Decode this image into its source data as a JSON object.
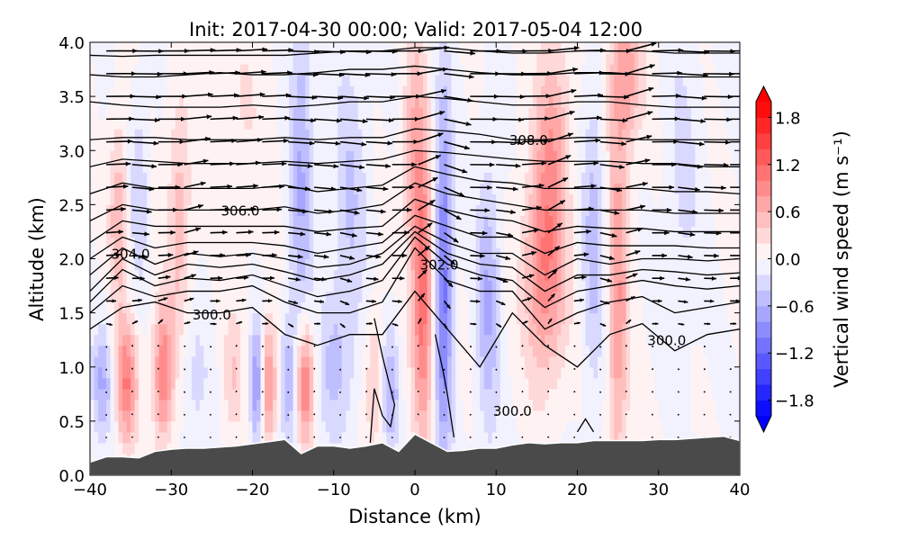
{
  "chart_data": {
    "type": "heatmap",
    "title": "Init: 2017-04-30 00:00; Valid: 2017-05-04 12:00",
    "xlabel": "Distance (km)",
    "ylabel": "Altitude (km)",
    "xlim": [
      -40,
      40
    ],
    "ylim": [
      0,
      4
    ],
    "xticks": [
      "−40",
      "−30",
      "−20",
      "−10",
      "0",
      "10",
      "20",
      "30",
      "40"
    ],
    "xtick_values": [
      -40,
      -30,
      -20,
      -10,
      0,
      10,
      20,
      30,
      40
    ],
    "yticks": [
      "0.0",
      "0.5",
      "1.0",
      "1.5",
      "2.0",
      "2.5",
      "3.0",
      "3.5",
      "4.0"
    ],
    "ytick_values": [
      0,
      0.5,
      1,
      1.5,
      2,
      2.5,
      3,
      3.5,
      4
    ],
    "colorbar": {
      "label": "Vertical wind speed (m s⁻¹)",
      "range": [
        -2.0,
        2.0
      ],
      "step": 0.2,
      "extend": "both",
      "ticks": [
        "−1.8",
        "−1.2",
        "−0.6",
        "0.0",
        "0.6",
        "1.2",
        "1.8"
      ],
      "tick_values": [
        -1.8,
        -1.2,
        -0.6,
        0,
        0.6,
        1.2,
        1.8
      ],
      "colormap": "bwr",
      "low_color": "#0000ff",
      "mid_color": "#ffffff",
      "high_color": "#ff0000"
    },
    "w_features": [
      {
        "x": -38.5,
        "z": 0.85,
        "sx": 0.9,
        "sz": 0.35,
        "w": -0.6
      },
      {
        "x": -35.5,
        "z": 0.85,
        "sx": 0.9,
        "sz": 0.4,
        "w": 1.0
      },
      {
        "x": -31,
        "z": 0.95,
        "sx": 0.9,
        "sz": 0.45,
        "w": 1.0
      },
      {
        "x": -27,
        "z": 0.9,
        "sx": 1.2,
        "sz": 0.4,
        "w": -0.3
      },
      {
        "x": -22.5,
        "z": 0.9,
        "sx": 0.9,
        "sz": 0.4,
        "w": 0.4
      },
      {
        "x": -19.5,
        "z": 0.85,
        "sx": 0.6,
        "sz": 0.4,
        "w": -0.9
      },
      {
        "x": -18,
        "z": 0.85,
        "sx": 0.7,
        "sz": 0.4,
        "w": 0.9
      },
      {
        "x": -15.5,
        "z": 0.9,
        "sx": 0.7,
        "sz": 0.4,
        "w": -0.6
      },
      {
        "x": -13.5,
        "z": 0.85,
        "sx": 0.8,
        "sz": 0.4,
        "w": 1.1
      },
      {
        "x": -10,
        "z": 1.0,
        "sx": 1.5,
        "sz": 0.5,
        "w": -0.4
      },
      {
        "x": -5,
        "z": 0.9,
        "sx": 0.8,
        "sz": 0.5,
        "w": 0.4
      },
      {
        "x": -3,
        "z": 0.8,
        "sx": 0.8,
        "sz": 0.4,
        "w": -0.6
      },
      {
        "x": 1,
        "z": 1.6,
        "sx": 0.9,
        "sz": 0.9,
        "w": 1.1
      },
      {
        "x": 3.5,
        "z": 1.8,
        "sx": 0.8,
        "sz": 1.2,
        "w": -1.1
      },
      {
        "x": 9,
        "z": 1.6,
        "sx": 1.0,
        "sz": 0.9,
        "w": -0.6
      },
      {
        "x": 16,
        "z": 1.9,
        "sx": 1.8,
        "sz": 0.7,
        "w": 1.0
      },
      {
        "x": 22,
        "z": 2.2,
        "sx": 1.0,
        "sz": 1.0,
        "w": -0.5
      },
      {
        "x": 25,
        "z": 1.6,
        "sx": 0.9,
        "sz": 1.2,
        "w": 0.8
      },
      {
        "x": -36.5,
        "z": 2.4,
        "sx": 0.8,
        "sz": 0.6,
        "w": 0.6
      },
      {
        "x": -34,
        "z": 2.6,
        "sx": 0.8,
        "sz": 0.6,
        "w": -0.4
      },
      {
        "x": -29,
        "z": 2.4,
        "sx": 1.0,
        "sz": 0.8,
        "w": 0.5
      },
      {
        "x": -14,
        "z": 2.8,
        "sx": 1.0,
        "sz": 1.2,
        "w": -0.6
      },
      {
        "x": -8,
        "z": 2.5,
        "sx": 1.5,
        "sz": 1.0,
        "w": -0.4
      },
      {
        "x": 0,
        "z": 3.0,
        "sx": 1.0,
        "sz": 0.8,
        "w": 0.6
      },
      {
        "x": 17,
        "z": 3.2,
        "sx": 1.5,
        "sz": 0.6,
        "w": 0.6
      },
      {
        "x": 26,
        "z": 3.7,
        "sx": 1.5,
        "sz": 0.5,
        "w": 0.7
      },
      {
        "x": 33,
        "z": 2.8,
        "sx": 1.5,
        "sz": 1.0,
        "w": -0.25
      },
      {
        "x": -22,
        "z": 3.3,
        "sx": 3.0,
        "sz": 0.8,
        "w": 0.2
      }
    ],
    "terrain_x": [
      -40,
      -38,
      -36,
      -34,
      -32,
      -30,
      -28,
      -26,
      -24,
      -22,
      -20,
      -18,
      -16,
      -14,
      -12,
      -10,
      -8,
      -6,
      -4,
      -2,
      0,
      2,
      4,
      6,
      8,
      10,
      12,
      14,
      16,
      18,
      20,
      22,
      24,
      26,
      28,
      30,
      32,
      34,
      36,
      38,
      40
    ],
    "terrain_z": [
      0.12,
      0.17,
      0.17,
      0.16,
      0.22,
      0.24,
      0.25,
      0.25,
      0.26,
      0.27,
      0.29,
      0.31,
      0.33,
      0.2,
      0.27,
      0.27,
      0.25,
      0.27,
      0.3,
      0.22,
      0.38,
      0.3,
      0.22,
      0.23,
      0.25,
      0.25,
      0.28,
      0.3,
      0.29,
      0.3,
      0.3,
      0.32,
      0.32,
      0.32,
      0.32,
      0.33,
      0.33,
      0.34,
      0.35,
      0.36,
      0.32
    ],
    "theta_contour_x": [
      -40,
      -36,
      -32,
      -28,
      -24,
      -20,
      -16,
      -12,
      -8,
      -4,
      0,
      4,
      8,
      12,
      16,
      20,
      24,
      28,
      32,
      36,
      40
    ],
    "theta_contours_z": [
      [
        1.35,
        1.55,
        1.6,
        1.5,
        1.5,
        1.55,
        1.3,
        1.2,
        1.3,
        1.3,
        1.7,
        1.35,
        1.0,
        1.5,
        1.2,
        1.0,
        1.3,
        1.4,
        1.15,
        1.3,
        1.35
      ],
      [
        1.5,
        1.75,
        1.65,
        1.7,
        1.7,
        1.75,
        1.6,
        1.5,
        1.5,
        1.6,
        2.1,
        1.8,
        1.7,
        1.7,
        1.35,
        1.5,
        1.6,
        1.65,
        1.5,
        1.55,
        1.6
      ],
      [
        1.6,
        1.9,
        1.75,
        1.82,
        1.8,
        1.85,
        1.75,
        1.65,
        1.7,
        1.8,
        2.2,
        1.95,
        1.85,
        1.8,
        1.55,
        1.7,
        1.75,
        1.8,
        1.75,
        1.72,
        1.75
      ],
      [
        1.7,
        2.0,
        1.85,
        1.95,
        1.92,
        1.95,
        1.88,
        1.8,
        1.85,
        1.95,
        2.25,
        2.05,
        1.95,
        1.92,
        1.7,
        1.85,
        1.85,
        1.9,
        1.88,
        1.85,
        1.87
      ],
      [
        1.85,
        2.1,
        1.95,
        2.05,
        2.02,
        2.05,
        2.0,
        1.92,
        1.95,
        2.05,
        2.3,
        2.15,
        2.05,
        2.05,
        1.85,
        2.0,
        1.95,
        2.0,
        2.0,
        1.98,
        2.0
      ],
      [
        2.0,
        2.2,
        2.1,
        2.15,
        2.15,
        2.15,
        2.12,
        2.05,
        2.1,
        2.15,
        2.4,
        2.3,
        2.2,
        2.2,
        2.05,
        2.15,
        2.12,
        2.12,
        2.12,
        2.1,
        2.1
      ],
      [
        2.15,
        2.35,
        2.3,
        2.3,
        2.3,
        2.3,
        2.3,
        2.25,
        2.28,
        2.3,
        2.55,
        2.45,
        2.38,
        2.35,
        2.25,
        2.3,
        2.28,
        2.28,
        2.25,
        2.25,
        2.25
      ],
      [
        2.35,
        2.5,
        2.45,
        2.45,
        2.45,
        2.45,
        2.48,
        2.42,
        2.45,
        2.5,
        2.7,
        2.6,
        2.55,
        2.5,
        2.45,
        2.45,
        2.45,
        2.45,
        2.42,
        2.42,
        2.42
      ],
      [
        2.6,
        2.7,
        2.65,
        2.65,
        2.65,
        2.65,
        2.68,
        2.62,
        2.65,
        2.68,
        2.85,
        2.78,
        2.72,
        2.7,
        2.65,
        2.65,
        2.65,
        2.65,
        2.62,
        2.62,
        2.6
      ],
      [
        2.85,
        2.92,
        2.9,
        2.88,
        2.88,
        2.88,
        2.9,
        2.88,
        2.9,
        2.92,
        3.0,
        2.98,
        2.95,
        2.92,
        2.9,
        2.9,
        2.9,
        2.88,
        2.88,
        2.85,
        2.85
      ],
      [
        3.1,
        3.12,
        3.12,
        3.1,
        3.1,
        3.1,
        3.12,
        3.1,
        3.12,
        3.12,
        3.2,
        3.18,
        3.15,
        3.1,
        3.1,
        3.12,
        3.12,
        3.1,
        3.1,
        3.1,
        3.1
      ],
      [
        3.45,
        3.42,
        3.4,
        3.4,
        3.4,
        3.42,
        3.4,
        3.42,
        3.45,
        3.45,
        3.5,
        3.48,
        3.45,
        3.42,
        3.42,
        3.45,
        3.45,
        3.42,
        3.4,
        3.4,
        3.4
      ],
      [
        3.7,
        3.68,
        3.68,
        3.7,
        3.72,
        3.7,
        3.7,
        3.72,
        3.75,
        3.75,
        3.78,
        3.75,
        3.72,
        3.7,
        3.7,
        3.72,
        3.72,
        3.7,
        3.68,
        3.68,
        3.68
      ],
      [
        3.88,
        3.87,
        3.88,
        3.88,
        3.88,
        3.88,
        3.88,
        3.9,
        3.92,
        3.92,
        3.95,
        3.95,
        3.92,
        3.9,
        3.9,
        3.92,
        3.92,
        3.92,
        3.9,
        3.9,
        3.9
      ]
    ],
    "theta_low_contours": [
      [
        [
          -5,
          1.45
        ],
        [
          -4,
          1.1
        ],
        [
          -2.5,
          0.65
        ],
        [
          -3,
          0.45
        ],
        [
          -4,
          0.55
        ],
        [
          -5,
          0.8
        ],
        [
          -5.5,
          0.3
        ]
      ],
      [
        [
          2.5,
          1.3
        ],
        [
          3.5,
          0.95
        ],
        [
          4,
          0.75
        ],
        [
          4.8,
          0.35
        ]
      ],
      [
        [
          20,
          0.4
        ],
        [
          21,
          0.52
        ],
        [
          22,
          0.4
        ]
      ]
    ],
    "contour_labels": [
      {
        "text": "308.0",
        "x": 14,
        "z": 3.1
      },
      {
        "text": "306.0",
        "x": -21.5,
        "z": 2.45
      },
      {
        "text": "304.0",
        "x": -35,
        "z": 2.05
      },
      {
        "text": "302.0",
        "x": 3,
        "z": 1.95
      },
      {
        "text": "300.0",
        "x": -25,
        "z": 1.49
      },
      {
        "text": "300.0",
        "x": 31,
        "z": 1.25
      },
      {
        "text": "300.0",
        "x": 12,
        "z": 0.6
      }
    ],
    "wind_profile_z": [
      0.3,
      1.2,
      1.5,
      2.0,
      2.5,
      3.0,
      3.5,
      4.0
    ],
    "wind_profile_u": [
      0.3,
      0.5,
      3,
      5,
      7,
      9,
      10,
      11
    ]
  }
}
